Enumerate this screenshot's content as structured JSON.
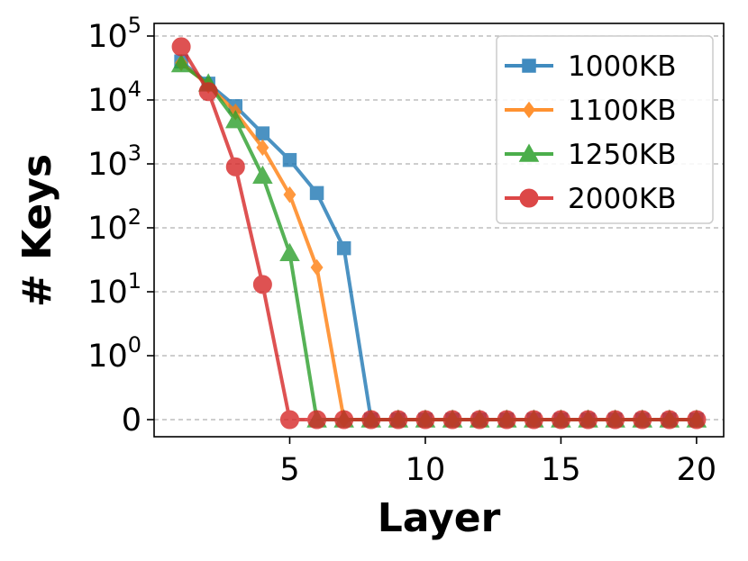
{
  "chart_data": {
    "type": "line",
    "title": "",
    "xlabel": "Layer",
    "ylabel": "# Keys",
    "xlim": [
      0,
      21
    ],
    "y_scale": "symlog",
    "ylim": [
      -0.4,
      100000
    ],
    "grid": "y",
    "legend_position": "top-right",
    "x_ticks": [
      5,
      10,
      15,
      20
    ],
    "x_tick_labels": [
      "5",
      "10",
      "15",
      "20"
    ],
    "y_ticks": [
      0,
      1,
      10,
      100,
      1000,
      10000,
      100000
    ],
    "y_tick_labels": [
      {
        "base": "0",
        "exp": ""
      },
      {
        "base": "10",
        "exp": "0"
      },
      {
        "base": "10",
        "exp": "1"
      },
      {
        "base": "10",
        "exp": "2"
      },
      {
        "base": "10",
        "exp": "3"
      },
      {
        "base": "10",
        "exp": "4"
      },
      {
        "base": "10",
        "exp": "5"
      }
    ],
    "x": [
      1,
      2,
      3,
      4,
      5,
      6,
      7,
      8,
      9,
      10,
      11,
      12,
      13,
      14,
      15,
      16,
      17,
      18,
      19,
      20
    ],
    "series": [
      {
        "name": "1000KB",
        "color": "#1f77b4",
        "marker": "square",
        "values": [
          40000,
          18000,
          8000,
          3000,
          1150,
          350,
          48,
          0,
          0,
          0,
          0,
          0,
          0,
          0,
          0,
          0,
          0,
          0,
          0,
          0
        ]
      },
      {
        "name": "1100KB",
        "color": "#ff7f0e",
        "marker": "diamond",
        "values": [
          38000,
          17000,
          6500,
          1800,
          330,
          24,
          0,
          0,
          0,
          0,
          0,
          0,
          0,
          0,
          0,
          0,
          0,
          0,
          0,
          0
        ]
      },
      {
        "name": "1250KB",
        "color": "#2ca02c",
        "marker": "triangle",
        "values": [
          36000,
          18000,
          4800,
          650,
          40,
          0,
          0,
          0,
          0,
          0,
          0,
          0,
          0,
          0,
          0,
          0,
          0,
          0,
          0,
          0
        ]
      },
      {
        "name": "2000KB",
        "color": "#d62728",
        "marker": "circle",
        "values": [
          68000,
          13500,
          900,
          13,
          0,
          0,
          0,
          0,
          0,
          0,
          0,
          0,
          0,
          0,
          0,
          0,
          0,
          0,
          0,
          0
        ]
      }
    ]
  }
}
